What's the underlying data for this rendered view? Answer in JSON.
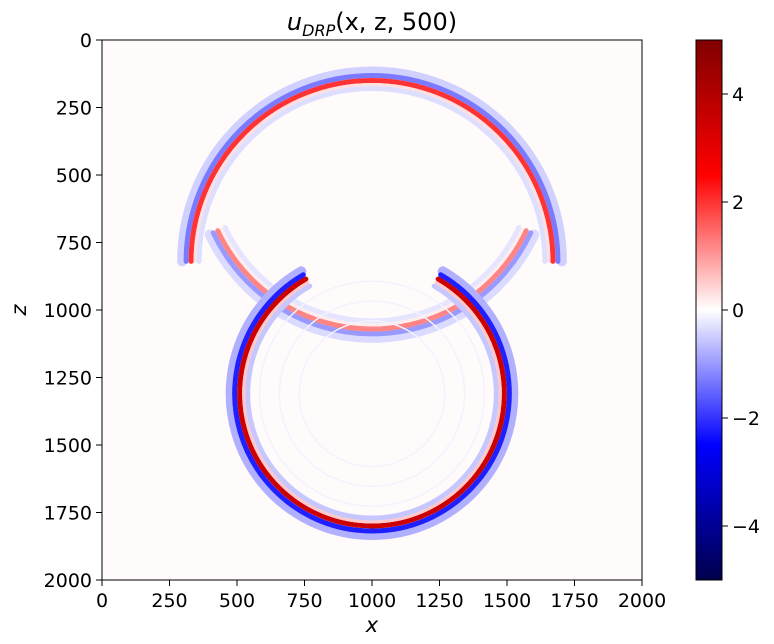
{
  "chart_data": {
    "type": "heatmap",
    "title_main": "u",
    "title_sub": "DRP",
    "title_rest": "(x, z, 500)",
    "xlabel": "x",
    "ylabel": "z",
    "xlim": [
      0,
      2000
    ],
    "ylim": [
      2000,
      0
    ],
    "x_ticks": [
      "0",
      "250",
      "500",
      "750",
      "1000",
      "1250",
      "1500",
      "1750",
      "2000"
    ],
    "y_ticks": [
      "0",
      "250",
      "500",
      "750",
      "1000",
      "1250",
      "1500",
      "1750",
      "2000"
    ],
    "colorbar": {
      "colormap": "seismic",
      "vmin": -5,
      "vmax": 5,
      "ticks": [
        "4",
        "2",
        "0",
        "−2",
        "−4"
      ],
      "tick_values": [
        4,
        2,
        0,
        -2,
        -4
      ]
    },
    "wavefronts": [
      {
        "name": "upper-arc",
        "center_x": 1000,
        "center_z": 820,
        "radius": 670,
        "range_deg": [
          180,
          360
        ],
        "peak": 2.0,
        "trough": -1.3
      },
      {
        "name": "interface-arc",
        "center_x": 1000,
        "center_z": 440,
        "radius": 630,
        "range_deg": [
          25,
          155
        ],
        "peak": 1.2,
        "trough": -1.0
      },
      {
        "name": "lower-circle",
        "center_x": 1000,
        "center_z": 1310,
        "radius": 490,
        "range_deg": [
          -60,
          240
        ],
        "peak": 3.5,
        "trough": -2.2
      }
    ],
    "colors": {
      "positive": "#ff0000",
      "negative": "#0000ff",
      "zero": "#ffffff"
    }
  }
}
